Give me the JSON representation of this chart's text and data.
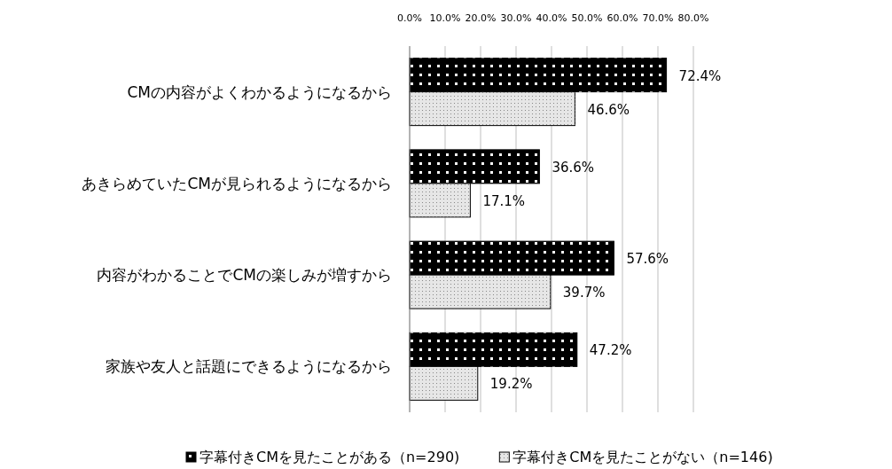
{
  "chart_data": {
    "type": "bar",
    "orientation": "horizontal",
    "categories": [
      "CMの内容がよくわかるようになるから",
      "あきらめていたCMが見られるようになるから",
      "内容がわかることでCMの楽しみが増すから",
      "家族や友人と話題にできるようになるから"
    ],
    "series": [
      {
        "name": "字幕付きCMを見たことがある（n=290)",
        "color": "#000000",
        "values": [
          72.4,
          36.6,
          57.6,
          47.2
        ],
        "value_labels": [
          "72.4%",
          "36.6%",
          "57.6%",
          "47.2%"
        ]
      },
      {
        "name": "字幕付きCMを見たことがない（n=146)",
        "color": "#e6e6e6",
        "values": [
          46.6,
          17.1,
          39.7,
          19.2
        ],
        "value_labels": [
          "46.6%",
          "17.1%",
          "39.7%",
          "19.2%"
        ]
      }
    ],
    "xlim": [
      0,
      80
    ],
    "xticks": [
      {
        "value": 0,
        "label": "0.0%"
      },
      {
        "value": 10,
        "label": "10.0%"
      },
      {
        "value": 20,
        "label": "20.0%"
      },
      {
        "value": 30,
        "label": "30.0%"
      },
      {
        "value": 40,
        "label": "40.0%"
      },
      {
        "value": 50,
        "label": "50.0%"
      },
      {
        "value": 60,
        "label": "60.0%"
      },
      {
        "value": 70,
        "label": "70.0%"
      },
      {
        "value": 80,
        "label": "80.0%"
      }
    ],
    "grid": "x",
    "legend": "bottom"
  }
}
